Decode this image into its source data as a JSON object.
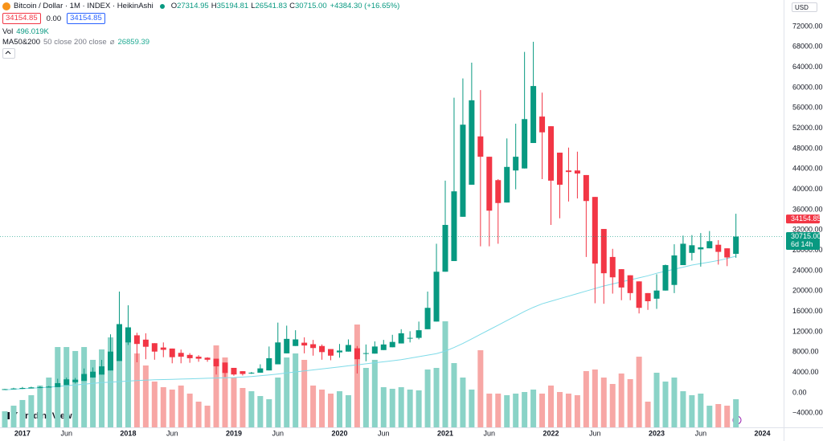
{
  "header": {
    "symbol": "Bitcoin / Dollar · 1M · INDEX · HeikinAshi",
    "ohlc": [
      {
        "key": "O",
        "value": "27314.95"
      },
      {
        "key": "H",
        "value": "35194.81"
      },
      {
        "key": "L",
        "value": "26541.83"
      },
      {
        "key": "C",
        "value": "30715.00"
      }
    ],
    "change": "+4384.30 (+16.65%)",
    "buttons": [
      "34154.85",
      "0.00",
      "34154.85"
    ],
    "volume": {
      "name": "Vol",
      "value": "496.019K"
    },
    "ma": {
      "name": "MA50&200",
      "params": "50 close 200 close",
      "symbol": "⌀",
      "value": "26859.39"
    },
    "currency": "USD",
    "logo": "TradingView"
  },
  "chart_data": {
    "type": "candlestick",
    "x": [
      "2016-11",
      "2016-12",
      "2017-01",
      "2017-02",
      "2017-03",
      "2017-04",
      "2017-05",
      "2017-06",
      "2017-07",
      "2017-08",
      "2017-09",
      "2017-10",
      "2017-11",
      "2017-12",
      "2018-01",
      "2018-02",
      "2018-03",
      "2018-04",
      "2018-05",
      "2018-06",
      "2018-07",
      "2018-08",
      "2018-09",
      "2018-10",
      "2018-11",
      "2018-12",
      "2019-01",
      "2019-02",
      "2019-03",
      "2019-04",
      "2019-05",
      "2019-06",
      "2019-07",
      "2019-08",
      "2019-09",
      "2019-10",
      "2019-11",
      "2019-12",
      "2020-01",
      "2020-02",
      "2020-03",
      "2020-04",
      "2020-05",
      "2020-06",
      "2020-07",
      "2020-08",
      "2020-09",
      "2020-10",
      "2020-11",
      "2020-12",
      "2021-01",
      "2021-02",
      "2021-03",
      "2021-04",
      "2021-05",
      "2021-06",
      "2021-07",
      "2021-08",
      "2021-09",
      "2021-10",
      "2021-11",
      "2021-12",
      "2022-01",
      "2022-02",
      "2022-03",
      "2022-04",
      "2022-05",
      "2022-06",
      "2022-07",
      "2022-08",
      "2022-09",
      "2022-10",
      "2022-11",
      "2022-12",
      "2023-01",
      "2023-02",
      "2023-03",
      "2023-04",
      "2023-05",
      "2023-06",
      "2023-07",
      "2023-08",
      "2023-09",
      "2023-10"
    ],
    "open": [
      700,
      710,
      780,
      860,
      970,
      1030,
      1120,
      1510,
      2080,
      2330,
      3010,
      3580,
      4390,
      6250,
      9900,
      11300,
      10450,
      9750,
      8900,
      8700,
      7850,
      7450,
      7100,
      6900,
      6700,
      5950,
      4900,
      4250,
      3950,
      3950,
      4400,
      5600,
      7750,
      9200,
      9850,
      9550,
      9200,
      8600,
      7950,
      8100,
      8750,
      7650,
      7700,
      8400,
      8950,
      9700,
      10700,
      10800,
      12500,
      14000,
      23800,
      25900,
      34600,
      40900,
      50400,
      46400,
      41800,
      37400,
      43700,
      44100,
      49100,
      54300,
      52400,
      47200,
      43700,
      43700,
      42800,
      38500,
      32200,
      26700,
      24300,
      23100,
      21900,
      19600,
      18500,
      20100,
      21200,
      25100,
      27500,
      28200,
      28400,
      29100,
      28400,
      27314.95
    ],
    "high": [
      760,
      980,
      1150,
      1200,
      1290,
      1350,
      2760,
      2980,
      2920,
      4780,
      4980,
      6470,
      11500,
      19900,
      17200,
      11800,
      11700,
      9750,
      9900,
      8700,
      8500,
      7800,
      7400,
      7000,
      6700,
      5950,
      4900,
      4250,
      4100,
      5600,
      9100,
      13800,
      13200,
      12300,
      10900,
      10400,
      9500,
      8600,
      9600,
      10500,
      9200,
      9500,
      10100,
      10400,
      11400,
      12500,
      12100,
      14000,
      19900,
      29300,
      41700,
      58000,
      61800,
      64900,
      59500,
      46400,
      42000,
      50000,
      52900,
      67000,
      69000,
      59000,
      52400,
      47200,
      48200,
      47400,
      42800,
      38500,
      32200,
      28300,
      24300,
      23100,
      21900,
      19600,
      23300,
      25200,
      29200,
      30900,
      31000,
      31400,
      31800,
      30000,
      28400,
      35194.81
    ],
    "low": [
      690,
      700,
      750,
      860,
      900,
      1030,
      1120,
      1510,
      1830,
      2330,
      2970,
      3580,
      4390,
      6250,
      9400,
      6000,
      6600,
      6500,
      7000,
      5800,
      5800,
      5900,
      6100,
      6100,
      3600,
      3100,
      3350,
      3400,
      3700,
      3950,
      4400,
      5600,
      7750,
      9200,
      7750,
      7300,
      6500,
      6400,
      6900,
      8100,
      3800,
      6200,
      7700,
      8400,
      8950,
      9700,
      9900,
      10500,
      12500,
      14000,
      23800,
      25900,
      34600,
      40900,
      28800,
      28800,
      29300,
      37400,
      40000,
      44100,
      49100,
      42000,
      33000,
      34300,
      37600,
      38200,
      26700,
      17600,
      17500,
      19500,
      18200,
      18200,
      15600,
      16300,
      16500,
      20100,
      19600,
      25100,
      26000,
      24800,
      28400,
      25200,
      24900,
      26541.83
    ],
    "close": [
      720,
      850,
      950,
      1070,
      1100,
      1220,
      1900,
      2650,
      2580,
      3700,
      4150,
      5200,
      8100,
      13500,
      12800,
      9600,
      9050,
      8100,
      8450,
      7000,
      7100,
      6800,
      6700,
      6500,
      5200,
      3900,
      3600,
      3700,
      3950,
      4800,
      6800,
      9900,
      10600,
      10500,
      9300,
      8800,
      8000,
      7300,
      8300,
      9400,
      6600,
      7800,
      9100,
      9500,
      10000,
      11700,
      10800,
      12300,
      16700,
      23800,
      33000,
      39600,
      52700,
      57500,
      46400,
      35800,
      37300,
      44400,
      46400,
      53800,
      60300,
      51200,
      41700,
      40900,
      43400,
      43100,
      37700,
      25400,
      23500,
      22700,
      20700,
      19600,
      16700,
      18000,
      20100,
      25100,
      27000,
      29300,
      29000,
      28600,
      29800,
      27700,
      26600,
      30715
    ],
    "volume": [
      283,
      382,
      482,
      567,
      737,
      878,
      1416,
      1416,
      1346,
      1416,
      1190,
      1374,
      1586,
      1331,
      1771,
      1303,
      1091,
      807,
      708,
      666,
      737,
      595,
      453,
      382,
      1445,
      1232,
      878,
      694,
      637,
      552,
      496,
      878,
      1232,
      1303,
      1190,
      737,
      666,
      595,
      637,
      567,
      1813,
      1048,
      1190,
      708,
      680,
      708,
      666,
      652,
      1020,
      1048,
      1870,
      1133,
      878,
      666,
      1360,
      595,
      595,
      567,
      595,
      623,
      666,
      595,
      737,
      623,
      595,
      567,
      992,
      1020,
      878,
      765,
      949,
      850,
      1246,
      453,
      963,
      807,
      878,
      637,
      567,
      595,
      382,
      411,
      382,
      496.019
    ],
    "ma": {
      "values": [
        600,
        700,
        800,
        900,
        1000,
        1100,
        1250,
        1400,
        1550,
        1700,
        1850,
        2000,
        2100,
        2200,
        2300,
        2400,
        2500,
        2550,
        2600,
        2650,
        2700,
        2750,
        2800,
        2850,
        2900,
        2950,
        3000,
        3100,
        3200,
        3350,
        3500,
        3700,
        3900,
        4100,
        4300,
        4500,
        4700,
        4900,
        5100,
        5300,
        5500,
        5700,
        5900,
        6100,
        6300,
        6500,
        6800,
        7100,
        7400,
        7700,
        8200,
        8900,
        9700,
        10600,
        11500,
        12400,
        13300,
        14200,
        15100,
        16000,
        16800,
        17500,
        18000,
        18500,
        19000,
        19500,
        20000,
        20500,
        21000,
        21400,
        21800,
        22200,
        22600,
        23000,
        23500,
        23900,
        24300,
        24700,
        25100,
        25400,
        25700,
        26000,
        26400,
        26859.39
      ],
      "color": "#7fdbe8"
    },
    "up_color": "#089981",
    "down_color": "#f23645",
    "volume_up_color": "#8ad3c7",
    "volume_down_color": "#f7a7a5",
    "ylim": [
      -6790,
      77210
    ],
    "vlim": [
      0,
      7535
    ],
    "yticks": [
      {
        "value": -4000,
        "label": "−4000.00"
      },
      {
        "value": 0,
        "label": "0.00"
      },
      {
        "value": 4000,
        "label": "4000.00"
      },
      {
        "value": 8000,
        "label": "8000.00"
      },
      {
        "value": 12000,
        "label": "12000.00"
      },
      {
        "value": 16000,
        "label": "16000.00"
      },
      {
        "value": 20000,
        "label": "20000.00"
      },
      {
        "value": 24000,
        "label": "24000.00"
      },
      {
        "value": 28000,
        "label": "28000.00"
      },
      {
        "value": 32000,
        "label": "32000.00"
      },
      {
        "value": 36000,
        "label": "36000.00"
      },
      {
        "value": 40000,
        "label": "40000.00"
      },
      {
        "value": 44000,
        "label": "44000.00"
      },
      {
        "value": 48000,
        "label": "48000.00"
      },
      {
        "value": 52000,
        "label": "52000.00"
      },
      {
        "value": 56000,
        "label": "56000.00"
      },
      {
        "value": 60000,
        "label": "60000.00"
      },
      {
        "value": 64000,
        "label": "64000.00"
      },
      {
        "value": 68000,
        "label": "68000.00"
      },
      {
        "value": 72000,
        "label": "72000.00"
      }
    ],
    "xticks": [
      {
        "value": "2017-01",
        "label": "2017"
      },
      {
        "value": "2017-06",
        "label": "Jun"
      },
      {
        "value": "2018-01",
        "label": "2018"
      },
      {
        "value": "2018-06",
        "label": "Jun"
      },
      {
        "value": "2019-01",
        "label": "2019"
      },
      {
        "value": "2019-06",
        "label": "Jun"
      },
      {
        "value": "2020-01",
        "label": "2020"
      },
      {
        "value": "2020-06",
        "label": "Jun"
      },
      {
        "value": "2021-01",
        "label": "2021"
      },
      {
        "value": "2021-06",
        "label": "Jun"
      },
      {
        "value": "2022-01",
        "label": "2022"
      },
      {
        "value": "2022-06",
        "label": "Jun"
      },
      {
        "value": "2023-01",
        "label": "2023"
      },
      {
        "value": "2023-06",
        "label": "Jun"
      },
      {
        "value": "2024-01",
        "label": "2024"
      }
    ],
    "price_tags": [
      {
        "value": 34154.85,
        "label": "34154.85",
        "color": "#f23645"
      },
      {
        "value": 30715,
        "label": "30715.00",
        "sublabel": "6d 14h",
        "color": "#089981"
      }
    ],
    "grid": false
  }
}
